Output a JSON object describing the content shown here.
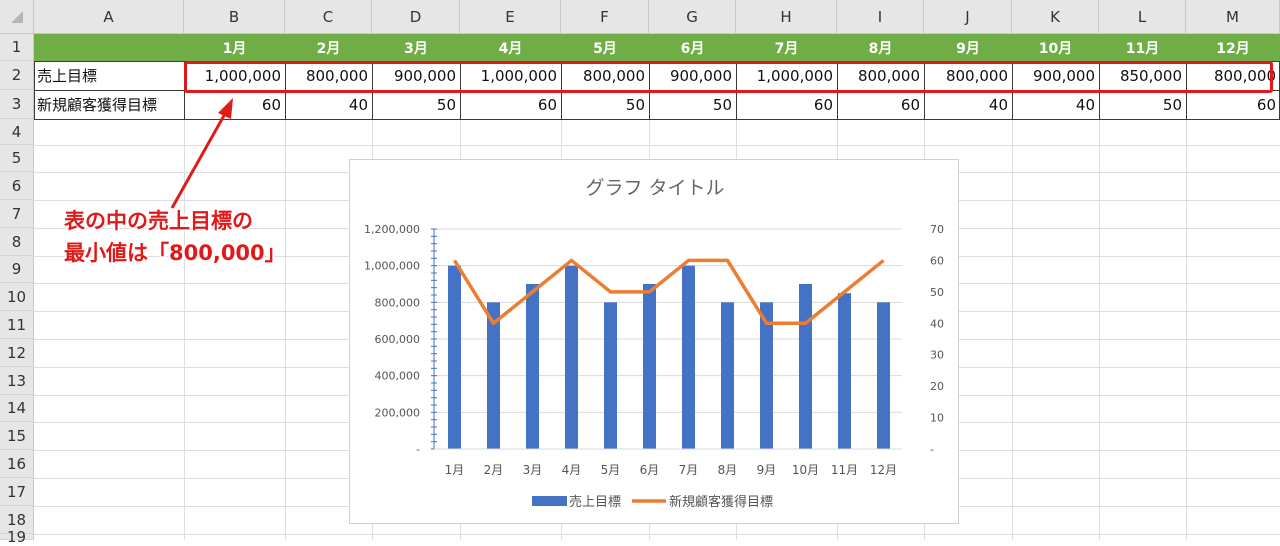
{
  "sheet": {
    "columns": [
      "A",
      "B",
      "C",
      "D",
      "E",
      "F",
      "G",
      "H",
      "I",
      "J",
      "K",
      "L",
      "M"
    ],
    "rows": [
      "1",
      "2",
      "3",
      "4",
      "5",
      "6",
      "7",
      "8",
      "9",
      "10",
      "11",
      "12",
      "13",
      "14",
      "15",
      "16",
      "17",
      "18",
      "19"
    ],
    "months": [
      "1月",
      "2月",
      "3月",
      "4月",
      "5月",
      "6月",
      "7月",
      "8月",
      "9月",
      "10月",
      "11月",
      "12月"
    ],
    "row2_label": "売上目標",
    "row2_values": [
      "1,000,000",
      "800,000",
      "900,000",
      "1,000,000",
      "800,000",
      "900,000",
      "1,000,000",
      "800,000",
      "800,000",
      "900,000",
      "850,000",
      "800,000"
    ],
    "row3_label": "新規顧客獲得目標",
    "row3_values": [
      "60",
      "40",
      "50",
      "60",
      "50",
      "50",
      "60",
      "60",
      "40",
      "40",
      "50",
      "60"
    ],
    "header_fill": "#70ad47",
    "highlight_color": "#e01a1a"
  },
  "callout": {
    "line1": "表の中の売上目標の",
    "line2": "最小値は「800,000」"
  },
  "chart_data": {
    "type": "bar",
    "title": "グラフ タイトル",
    "categories": [
      "1月",
      "2月",
      "3月",
      "4月",
      "5月",
      "6月",
      "7月",
      "8月",
      "9月",
      "10月",
      "11月",
      "12月"
    ],
    "series": [
      {
        "name": "売上目標",
        "type": "bar",
        "axis": "left",
        "color": "#4472c4",
        "values": [
          1000000,
          800000,
          900000,
          1000000,
          800000,
          900000,
          1000000,
          800000,
          800000,
          900000,
          850000,
          800000
        ]
      },
      {
        "name": "新規顧客獲得目標",
        "type": "line",
        "axis": "right",
        "color": "#ed7d31",
        "values": [
          60,
          40,
          50,
          60,
          50,
          50,
          60,
          60,
          40,
          40,
          50,
          60
        ]
      }
    ],
    "y_left": {
      "min": 0,
      "max": 1200000,
      "step": 200000,
      "ticks": [
        "-",
        "200,000",
        "400,000",
        "600,000",
        "800,000",
        "1,000,000",
        "1,200,000"
      ]
    },
    "y_right": {
      "min": 0,
      "max": 70,
      "step": 10,
      "ticks": [
        "-",
        "10",
        "20",
        "30",
        "40",
        "50",
        "60",
        "70"
      ]
    },
    "legend_position": "bottom",
    "grid": true
  }
}
